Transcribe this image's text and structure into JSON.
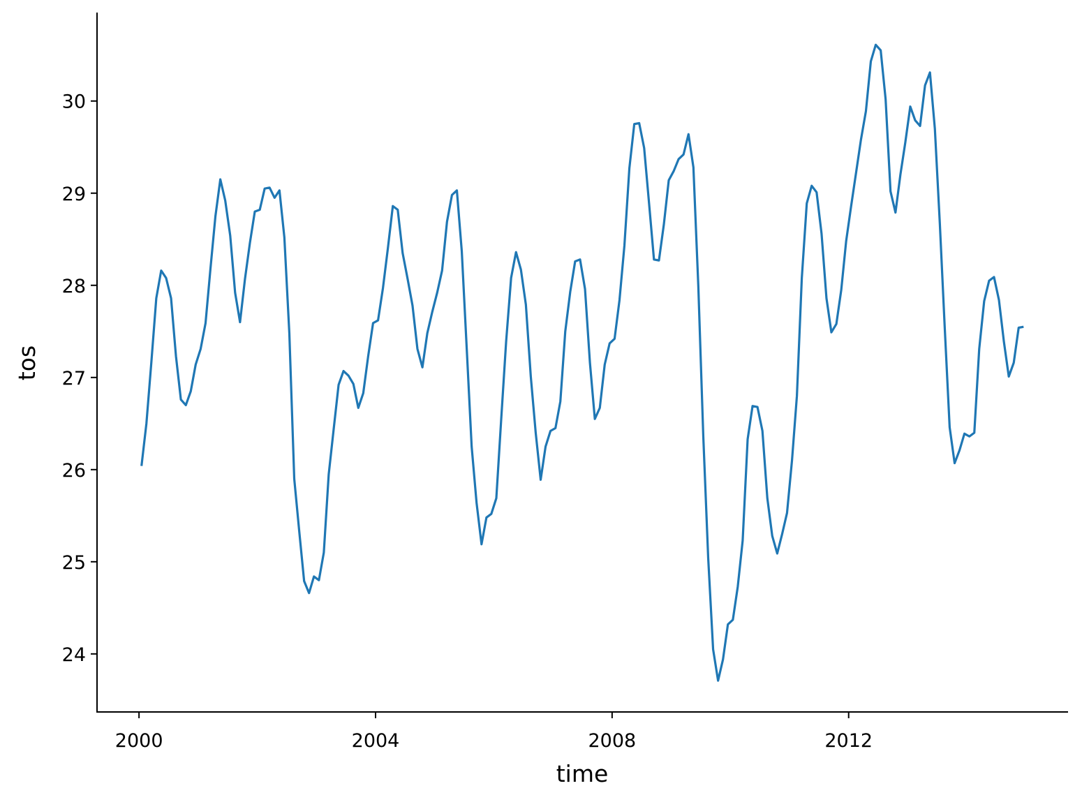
{
  "chart_data": {
    "type": "line",
    "x_label": "time",
    "y_label": "tos",
    "x": [
      2000.042,
      2000.125,
      2000.208,
      2000.292,
      2000.375,
      2000.458,
      2000.542,
      2000.625,
      2000.708,
      2000.792,
      2000.875,
      2000.958,
      2001.042,
      2001.125,
      2001.208,
      2001.292,
      2001.375,
      2001.458,
      2001.542,
      2001.625,
      2001.708,
      2001.792,
      2001.875,
      2001.958,
      2002.042,
      2002.125,
      2002.208,
      2002.292,
      2002.375,
      2002.458,
      2002.542,
      2002.625,
      2002.708,
      2002.792,
      2002.875,
      2002.958,
      2003.042,
      2003.125,
      2003.208,
      2003.292,
      2003.375,
      2003.458,
      2003.542,
      2003.625,
      2003.708,
      2003.792,
      2003.875,
      2003.958,
      2004.042,
      2004.125,
      2004.208,
      2004.292,
      2004.375,
      2004.458,
      2004.542,
      2004.625,
      2004.708,
      2004.792,
      2004.875,
      2004.958,
      2005.042,
      2005.125,
      2005.208,
      2005.292,
      2005.375,
      2005.458,
      2005.542,
      2005.625,
      2005.708,
      2005.792,
      2005.875,
      2005.958,
      2006.042,
      2006.125,
      2006.208,
      2006.292,
      2006.375,
      2006.458,
      2006.542,
      2006.625,
      2006.708,
      2006.792,
      2006.875,
      2006.958,
      2007.042,
      2007.125,
      2007.208,
      2007.292,
      2007.375,
      2007.458,
      2007.542,
      2007.625,
      2007.708,
      2007.792,
      2007.875,
      2007.958,
      2008.042,
      2008.125,
      2008.208,
      2008.292,
      2008.375,
      2008.458,
      2008.542,
      2008.625,
      2008.708,
      2008.792,
      2008.875,
      2008.958,
      2009.042,
      2009.125,
      2009.208,
      2009.292,
      2009.375,
      2009.458,
      2009.542,
      2009.625,
      2009.708,
      2009.792,
      2009.875,
      2009.958,
      2010.042,
      2010.125,
      2010.208,
      2010.292,
      2010.375,
      2010.458,
      2010.542,
      2010.625,
      2010.708,
      2010.792,
      2010.875,
      2010.958,
      2011.042,
      2011.125,
      2011.208,
      2011.292,
      2011.375,
      2011.458,
      2011.542,
      2011.625,
      2011.708,
      2011.792,
      2011.875,
      2011.958,
      2012.042,
      2012.125,
      2012.208,
      2012.292,
      2012.375,
      2012.458,
      2012.542,
      2012.625,
      2012.708,
      2012.792,
      2012.875,
      2012.958,
      2013.042,
      2013.125,
      2013.208,
      2013.292,
      2013.375,
      2013.458,
      2013.542,
      2013.625,
      2013.708,
      2013.792,
      2013.875,
      2013.958,
      2014.042,
      2014.125,
      2014.208,
      2014.292,
      2014.375,
      2014.458,
      2014.542,
      2014.625,
      2014.708,
      2014.792,
      2014.875,
      2014.958
    ],
    "series": [
      {
        "color": "#1f77b4",
        "values": [
          26.04,
          26.5,
          27.16,
          27.86,
          28.16,
          28.08,
          27.86,
          27.23,
          26.76,
          26.7,
          26.85,
          27.14,
          27.31,
          27.59,
          28.18,
          28.75,
          29.15,
          28.92,
          28.54,
          27.92,
          27.6,
          28.07,
          28.46,
          28.8,
          28.82,
          29.05,
          29.06,
          28.95,
          29.03,
          28.52,
          27.48,
          25.9,
          25.34,
          24.79,
          24.66,
          24.84,
          24.8,
          25.1,
          25.95,
          26.44,
          26.92,
          27.07,
          27.02,
          26.93,
          26.67,
          26.83,
          27.23,
          27.59,
          27.62,
          27.97,
          28.4,
          28.86,
          28.82,
          28.35,
          28.07,
          27.78,
          27.31,
          27.11,
          27.48,
          27.71,
          27.92,
          28.16,
          28.69,
          28.98,
          29.03,
          28.37,
          27.31,
          26.25,
          25.64,
          25.19,
          25.48,
          25.52,
          25.69,
          26.55,
          27.39,
          28.08,
          28.36,
          28.17,
          27.79,
          27.01,
          26.4,
          25.89,
          26.25,
          26.42,
          26.45,
          26.74,
          27.5,
          27.93,
          28.26,
          28.28,
          27.96,
          27.16,
          26.55,
          26.67,
          27.14,
          27.37,
          27.42,
          27.84,
          28.43,
          29.27,
          29.75,
          29.76,
          29.49,
          28.89,
          28.28,
          28.27,
          28.66,
          29.14,
          29.24,
          29.37,
          29.42,
          29.64,
          29.28,
          27.99,
          26.36,
          25.04,
          24.05,
          23.71,
          23.94,
          24.32,
          24.37,
          24.73,
          25.23,
          26.33,
          26.69,
          26.68,
          26.42,
          25.69,
          25.28,
          25.09,
          25.3,
          25.53,
          26.1,
          26.8,
          28.08,
          28.89,
          29.08,
          29.01,
          28.56,
          27.86,
          27.49,
          27.58,
          27.95,
          28.48,
          28.86,
          29.22,
          29.58,
          29.89,
          30.43,
          30.61,
          30.55,
          30.02,
          29.02,
          28.79,
          29.2,
          29.55,
          29.94,
          29.79,
          29.73,
          30.17,
          30.31,
          29.7,
          28.67,
          27.54,
          26.46,
          26.07,
          26.21,
          26.39,
          26.36,
          26.4,
          27.31,
          27.83,
          28.05,
          28.09,
          27.84,
          27.39,
          27.01,
          27.16,
          27.54,
          27.55
        ]
      }
    ],
    "xlim": [
      1999.29,
      2015.71
    ],
    "ylim": [
      23.37,
      30.96
    ],
    "xticks": [
      2000,
      2004,
      2008,
      2012
    ],
    "yticks": [
      24,
      25,
      26,
      27,
      28,
      29,
      30
    ]
  }
}
